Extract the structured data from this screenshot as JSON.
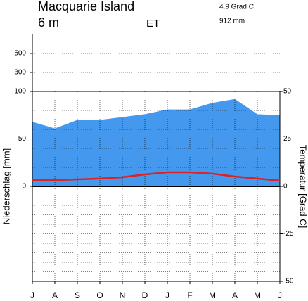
{
  "chart_data": {
    "type": "climate",
    "title": "Macquarie Island",
    "elevation": "6 m",
    "climate_class": "ET",
    "mean_temperature": "4.9 Grad C",
    "annual_precipitation": "912 mm",
    "ylabel": "Niederschlag [mm]",
    "y2label": "Temperatur [Grad C]",
    "categories": [
      "J",
      "A",
      "S",
      "O",
      "N",
      "D",
      "J",
      "F",
      "M",
      "A",
      "M",
      "J"
    ],
    "series": [
      {
        "name": "Niederschlag",
        "color": "#4499ee",
        "values": [
          68,
          61,
          70,
          70,
          73,
          76,
          81,
          81,
          88,
          92,
          76,
          75
        ]
      },
      {
        "name": "Temperatur",
        "color": "#dd2222",
        "axis": "y2",
        "values": [
          3.3,
          3.3,
          3.7,
          4.1,
          4.8,
          6.3,
          7.4,
          7.4,
          6.7,
          5.2,
          4.1,
          3.0
        ]
      }
    ],
    "ylim": [
      -100,
      700
    ],
    "scale_break": 100,
    "yticks": [
      0,
      50,
      100,
      300,
      500
    ],
    "yminor": [
      -90,
      -80,
      -70,
      -60,
      -50,
      -40,
      -30,
      -20,
      -10,
      10,
      20,
      30,
      40,
      60,
      70,
      80,
      90,
      200,
      400,
      600
    ],
    "y2lim": [
      -50,
      50
    ],
    "y2ticks": [
      -50,
      -25,
      0,
      25,
      50
    ],
    "grid": true
  }
}
